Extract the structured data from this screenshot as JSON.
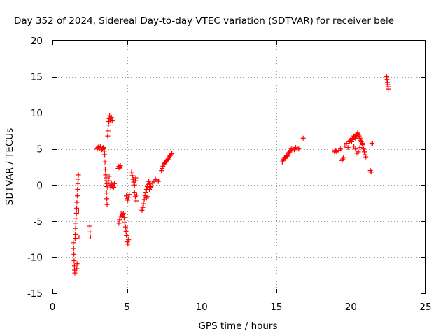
{
  "chart_data": {
    "type": "scatter",
    "title": "Day 352 of 2024, Sidereal Day-to-day VTEC variation (SDTVAR) for receiver bele",
    "xlabel": "GPS time / hours",
    "ylabel": "SDTVAR / TECUs",
    "xlim": [
      0,
      25
    ],
    "ylim": [
      -15,
      20
    ],
    "xticks": [
      0,
      5,
      10,
      15,
      20,
      25
    ],
    "yticks": [
      -15,
      -10,
      -5,
      0,
      5,
      10,
      15,
      20
    ],
    "xtick_labels": [
      "0",
      "5",
      "10",
      "15",
      "20",
      "25"
    ],
    "ytick_labels": [
      "-15",
      "-10",
      "-5",
      "0",
      "5",
      "10",
      "15",
      "20"
    ],
    "grid": true,
    "marker": "plus",
    "color": "#ff0000",
    "series": [
      {
        "name": "SDTVAR",
        "points": [
          [
            1.4,
            -8.0
          ],
          [
            1.42,
            -8.8
          ],
          [
            1.44,
            -9.6
          ],
          [
            1.45,
            -10.5
          ],
          [
            1.47,
            -11.2
          ],
          [
            1.48,
            -11.8
          ],
          [
            1.5,
            -12.2
          ],
          [
            1.52,
            -7.4
          ],
          [
            1.53,
            -6.8
          ],
          [
            1.55,
            -6.0
          ],
          [
            1.57,
            -5.3
          ],
          [
            1.58,
            -4.6
          ],
          [
            1.6,
            -3.9
          ],
          [
            1.62,
            -3.2
          ],
          [
            1.64,
            -2.4
          ],
          [
            1.66,
            -1.5
          ],
          [
            1.68,
            -0.6
          ],
          [
            1.7,
            0.2
          ],
          [
            1.72,
            0.8
          ],
          [
            1.74,
            1.4
          ],
          [
            1.63,
            -11.6
          ],
          [
            1.65,
            -10.9
          ],
          [
            1.75,
            -3.6
          ],
          [
            1.78,
            -7.2
          ],
          [
            2.5,
            -5.7
          ],
          [
            2.52,
            -6.5
          ],
          [
            2.55,
            -7.2
          ],
          [
            3.0,
            5.0
          ],
          [
            3.05,
            5.2
          ],
          [
            3.1,
            5.3
          ],
          [
            3.15,
            5.1
          ],
          [
            3.2,
            5.4
          ],
          [
            3.25,
            5.2
          ],
          [
            3.3,
            4.9
          ],
          [
            3.35,
            5.1
          ],
          [
            3.4,
            5.2
          ],
          [
            3.45,
            5.0
          ],
          [
            3.48,
            4.7
          ],
          [
            3.5,
            4.2
          ],
          [
            3.52,
            3.2
          ],
          [
            3.54,
            2.2
          ],
          [
            3.56,
            1.4
          ],
          [
            3.58,
            0.6
          ],
          [
            3.6,
            -0.2
          ],
          [
            3.62,
            -1.1
          ],
          [
            3.64,
            -1.9
          ],
          [
            3.66,
            -2.7
          ],
          [
            3.6,
            1.0
          ],
          [
            3.65,
            0.2
          ],
          [
            3.7,
            -0.4
          ],
          [
            3.75,
            0.6
          ],
          [
            3.8,
            1.2
          ],
          [
            3.7,
            6.8
          ],
          [
            3.72,
            7.5
          ],
          [
            3.75,
            8.3
          ],
          [
            3.78,
            8.8
          ],
          [
            3.8,
            9.2
          ],
          [
            3.83,
            9.6
          ],
          [
            3.86,
            9.3
          ],
          [
            3.9,
            9.0
          ],
          [
            3.95,
            9.4
          ],
          [
            4.0,
            8.9
          ],
          [
            3.85,
            0.0
          ],
          [
            3.9,
            -0.4
          ],
          [
            3.95,
            0.3
          ],
          [
            4.0,
            -0.2
          ],
          [
            4.05,
            0.1
          ],
          [
            4.1,
            -0.3
          ],
          [
            4.15,
            0.2
          ],
          [
            4.4,
            2.3
          ],
          [
            4.45,
            2.6
          ],
          [
            4.5,
            2.4
          ],
          [
            4.55,
            2.7
          ],
          [
            4.6,
            2.5
          ],
          [
            4.45,
            -5.3
          ],
          [
            4.5,
            -4.8
          ],
          [
            4.55,
            -4.3
          ],
          [
            4.6,
            -4.0
          ],
          [
            4.65,
            -4.4
          ],
          [
            4.7,
            -4.1
          ],
          [
            4.75,
            -3.9
          ],
          [
            4.8,
            -4.5
          ],
          [
            4.85,
            -5.2
          ],
          [
            4.9,
            -5.8
          ],
          [
            4.93,
            -6.4
          ],
          [
            4.96,
            -7.0
          ],
          [
            5.0,
            -7.5
          ],
          [
            5.03,
            -7.9
          ],
          [
            5.06,
            -8.2
          ],
          [
            5.1,
            -7.6
          ],
          [
            4.95,
            -1.5
          ],
          [
            5.0,
            -1.9
          ],
          [
            5.05,
            -2.1
          ],
          [
            5.1,
            -1.7
          ],
          [
            5.15,
            -1.3
          ],
          [
            5.3,
            1.8
          ],
          [
            5.35,
            1.3
          ],
          [
            5.4,
            0.8
          ],
          [
            5.45,
            0.4
          ],
          [
            5.5,
            0.0
          ],
          [
            5.55,
            0.6
          ],
          [
            5.58,
            1.0
          ],
          [
            5.5,
            -1.0
          ],
          [
            5.55,
            -1.6
          ],
          [
            5.6,
            -2.2
          ],
          [
            5.65,
            -1.4
          ],
          [
            6.0,
            -3.5
          ],
          [
            6.05,
            -3.1
          ],
          [
            6.1,
            -2.6
          ],
          [
            6.15,
            -2.0
          ],
          [
            6.2,
            -1.5
          ],
          [
            6.25,
            -1.0
          ],
          [
            6.3,
            -0.6
          ],
          [
            6.35,
            -0.2
          ],
          [
            6.4,
            0.1
          ],
          [
            6.45,
            0.5
          ],
          [
            6.5,
            0.2
          ],
          [
            6.55,
            -0.3
          ],
          [
            6.3,
            -1.8
          ],
          [
            6.4,
            -1.6
          ],
          [
            6.5,
            -0.6
          ],
          [
            6.6,
            -0.2
          ],
          [
            6.7,
            0.3
          ],
          [
            6.8,
            0.5
          ],
          [
            6.9,
            0.8
          ],
          [
            7.0,
            0.7
          ],
          [
            7.1,
            0.5
          ],
          [
            7.3,
            2.0
          ],
          [
            7.35,
            2.3
          ],
          [
            7.4,
            2.6
          ],
          [
            7.45,
            2.8
          ],
          [
            7.5,
            3.0
          ],
          [
            7.55,
            3.1
          ],
          [
            7.6,
            3.2
          ],
          [
            7.65,
            3.4
          ],
          [
            7.7,
            3.5
          ],
          [
            7.75,
            3.6
          ],
          [
            7.8,
            3.8
          ],
          [
            7.85,
            4.0
          ],
          [
            7.9,
            4.1
          ],
          [
            7.95,
            4.3
          ],
          [
            8.0,
            4.4
          ],
          [
            15.4,
            3.2
          ],
          [
            15.45,
            3.4
          ],
          [
            15.5,
            3.6
          ],
          [
            15.55,
            3.8
          ],
          [
            15.6,
            3.7
          ],
          [
            15.65,
            3.9
          ],
          [
            15.7,
            4.1
          ],
          [
            15.75,
            4.0
          ],
          [
            15.8,
            4.3
          ],
          [
            15.85,
            4.5
          ],
          [
            15.9,
            4.6
          ],
          [
            15.95,
            4.8
          ],
          [
            16.0,
            5.0
          ],
          [
            16.1,
            5.1
          ],
          [
            16.2,
            4.9
          ],
          [
            16.3,
            5.2
          ],
          [
            16.4,
            5.1
          ],
          [
            16.5,
            5.0
          ],
          [
            16.8,
            6.5
          ],
          [
            18.9,
            4.6
          ],
          [
            18.95,
            4.8
          ],
          [
            19.0,
            4.7
          ],
          [
            19.05,
            4.6
          ],
          [
            19.2,
            4.8
          ],
          [
            19.3,
            5.0
          ],
          [
            19.4,
            3.4
          ],
          [
            19.45,
            3.6
          ],
          [
            19.5,
            3.8
          ],
          [
            19.6,
            5.4
          ],
          [
            19.7,
            5.8
          ],
          [
            19.8,
            5.2
          ],
          [
            19.9,
            6.0
          ],
          [
            19.95,
            6.2
          ],
          [
            20.0,
            6.4
          ],
          [
            20.05,
            6.0
          ],
          [
            20.1,
            6.5
          ],
          [
            20.15,
            6.3
          ],
          [
            20.2,
            6.8
          ],
          [
            20.25,
            6.6
          ],
          [
            20.3,
            6.5
          ],
          [
            20.35,
            6.9
          ],
          [
            20.4,
            7.0
          ],
          [
            20.45,
            7.2
          ],
          [
            20.5,
            7.0
          ],
          [
            20.55,
            6.8
          ],
          [
            20.6,
            6.5
          ],
          [
            20.65,
            6.2
          ],
          [
            20.7,
            6.0
          ],
          [
            20.75,
            5.8
          ],
          [
            20.8,
            5.6
          ],
          [
            20.85,
            5.0
          ],
          [
            20.9,
            4.6
          ],
          [
            20.95,
            4.2
          ],
          [
            21.0,
            3.9
          ],
          [
            20.2,
            5.4
          ],
          [
            20.3,
            5.0
          ],
          [
            20.4,
            4.4
          ],
          [
            20.5,
            4.6
          ],
          [
            20.6,
            5.2
          ],
          [
            21.4,
            5.8
          ],
          [
            21.45,
            5.7
          ],
          [
            21.3,
            2.0
          ],
          [
            21.35,
            1.8
          ],
          [
            22.4,
            15.0
          ],
          [
            22.42,
            14.6
          ],
          [
            22.44,
            14.2
          ],
          [
            22.46,
            13.9
          ],
          [
            22.48,
            13.6
          ],
          [
            22.5,
            13.3
          ]
        ]
      }
    ]
  }
}
